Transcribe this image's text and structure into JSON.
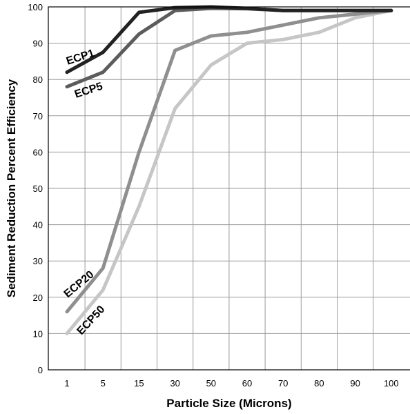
{
  "chart_data": {
    "type": "line",
    "title": "",
    "xlabel": "Particle Size (Microns)",
    "ylabel": "Sediment Reduction Percent Efficiency",
    "categories": [
      "1",
      "5",
      "15",
      "30",
      "50",
      "60",
      "70",
      "80",
      "90",
      "100"
    ],
    "ylim": [
      0,
      100
    ],
    "yticks": [
      "0",
      "10",
      "20",
      "30",
      "40",
      "50",
      "60",
      "70",
      "80",
      "90",
      "100"
    ],
    "grid": true,
    "legend": "none",
    "series": [
      {
        "name": "ECP1",
        "color": "#222222",
        "values": [
          82,
          87.5,
          98.5,
          99.8,
          100,
          99.6,
          99,
          99,
          99,
          99
        ]
      },
      {
        "name": "ECP5",
        "color": "#5c5c5c",
        "values": [
          78,
          82,
          92.5,
          99,
          99.6,
          99.5,
          99,
          99,
          99,
          99
        ]
      },
      {
        "name": "ECP20",
        "color": "#8f8f8f",
        "values": [
          16,
          28,
          60,
          88,
          92,
          93,
          95,
          97,
          98,
          99
        ]
      },
      {
        "name": "ECP50",
        "color": "#c6c6c6",
        "values": [
          10,
          22,
          45,
          72,
          84,
          90,
          91,
          93,
          97,
          99
        ]
      }
    ]
  }
}
